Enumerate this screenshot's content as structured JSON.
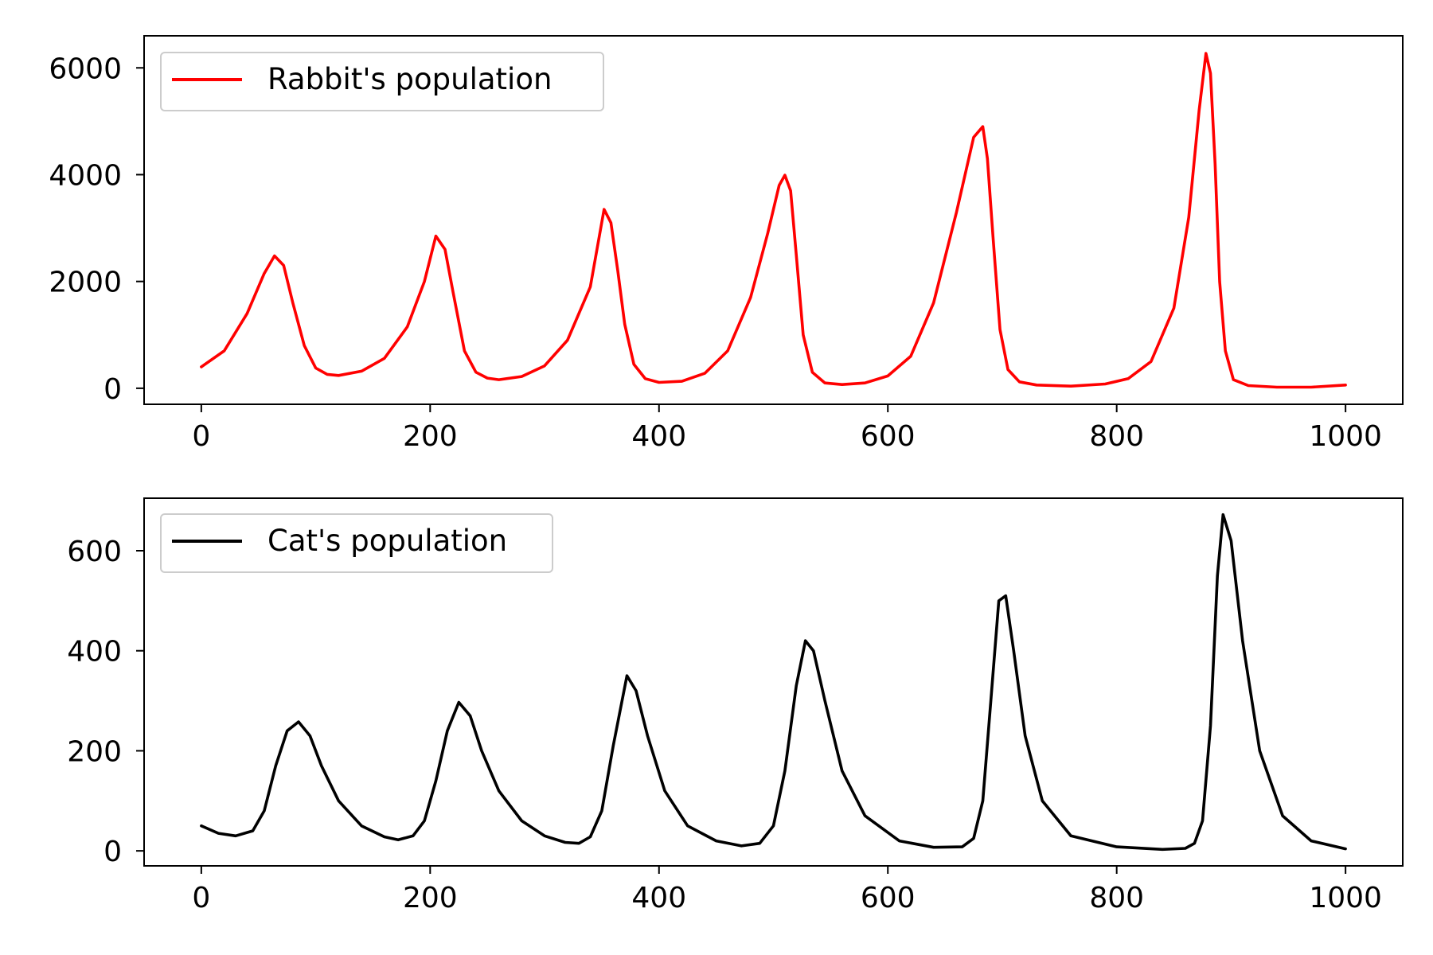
{
  "chart_data": [
    {
      "type": "line",
      "title": "",
      "xlabel": "",
      "ylabel": "",
      "xlim": [
        -50,
        1050
      ],
      "ylim": [
        -300,
        6600
      ],
      "xticks": [
        0,
        200,
        400,
        600,
        800,
        1000
      ],
      "xtick_labels": [
        "0",
        "200",
        "400",
        "600",
        "800",
        "1000"
      ],
      "yticks": [
        0,
        2000,
        4000,
        6000
      ],
      "ytick_labels": [
        "0",
        "2000",
        "4000",
        "6000"
      ],
      "grid": false,
      "legend_position": "upper-left",
      "series": [
        {
          "name": "Rabbit's population",
          "color": "#ff0000",
          "x": [
            0,
            20,
            40,
            55,
            64,
            72,
            80,
            90,
            100,
            110,
            120,
            140,
            160,
            180,
            195,
            205,
            213,
            220,
            230,
            240,
            250,
            260,
            280,
            300,
            320,
            340,
            352,
            358,
            364,
            370,
            378,
            388,
            400,
            420,
            440,
            460,
            480,
            495,
            505,
            510,
            515,
            520,
            526,
            534,
            545,
            560,
            580,
            600,
            620,
            640,
            660,
            675,
            683,
            687,
            692,
            698,
            705,
            715,
            730,
            760,
            790,
            810,
            830,
            850,
            863,
            872,
            878,
            882,
            886,
            890,
            895,
            902,
            915,
            940,
            970,
            1000
          ],
          "y": [
            400,
            700,
            1400,
            2150,
            2480,
            2300,
            1600,
            800,
            380,
            260,
            240,
            320,
            560,
            1150,
            2000,
            2850,
            2600,
            1800,
            700,
            300,
            190,
            160,
            220,
            420,
            900,
            1900,
            3350,
            3100,
            2200,
            1200,
            450,
            180,
            110,
            130,
            280,
            700,
            1700,
            2900,
            3800,
            3990,
            3700,
            2500,
            1000,
            300,
            100,
            70,
            100,
            230,
            600,
            1600,
            3300,
            4700,
            4900,
            4300,
            2800,
            1100,
            350,
            120,
            60,
            40,
            80,
            180,
            500,
            1500,
            3200,
            5200,
            6270,
            5900,
            4200,
            2000,
            700,
            160,
            50,
            20,
            20,
            60
          ]
        }
      ]
    },
    {
      "type": "line",
      "title": "",
      "xlabel": "",
      "ylabel": "",
      "xlim": [
        -50,
        1050
      ],
      "ylim": [
        -30,
        705
      ],
      "xticks": [
        0,
        200,
        400,
        600,
        800,
        1000
      ],
      "xtick_labels": [
        "0",
        "200",
        "400",
        "600",
        "800",
        "1000"
      ],
      "yticks": [
        0,
        200,
        400,
        600
      ],
      "ytick_labels": [
        "0",
        "200",
        "400",
        "600"
      ],
      "grid": false,
      "legend_position": "upper-left",
      "series": [
        {
          "name": "Cat's population",
          "color": "#000000",
          "x": [
            0,
            15,
            30,
            45,
            55,
            65,
            75,
            85,
            95,
            105,
            120,
            140,
            160,
            172,
            185,
            195,
            205,
            215,
            225,
            235,
            245,
            260,
            280,
            300,
            318,
            330,
            340,
            350,
            360,
            372,
            380,
            390,
            405,
            425,
            450,
            472,
            488,
            500,
            510,
            520,
            528,
            535,
            545,
            560,
            580,
            610,
            640,
            665,
            675,
            683,
            690,
            697,
            703,
            710,
            720,
            735,
            760,
            800,
            840,
            860,
            868,
            875,
            882,
            888,
            893,
            900,
            910,
            925,
            945,
            970,
            1000
          ],
          "y": [
            50,
            35,
            30,
            40,
            80,
            170,
            240,
            258,
            230,
            170,
            100,
            50,
            28,
            22,
            30,
            60,
            140,
            240,
            297,
            270,
            200,
            120,
            60,
            30,
            17,
            15,
            28,
            80,
            210,
            350,
            320,
            230,
            120,
            50,
            20,
            10,
            15,
            50,
            160,
            330,
            420,
            400,
            300,
            160,
            70,
            20,
            7,
            8,
            25,
            100,
            300,
            500,
            510,
            400,
            230,
            100,
            30,
            8,
            3,
            5,
            15,
            60,
            250,
            550,
            672,
            620,
            420,
            200,
            70,
            20,
            4
          ]
        }
      ]
    }
  ]
}
